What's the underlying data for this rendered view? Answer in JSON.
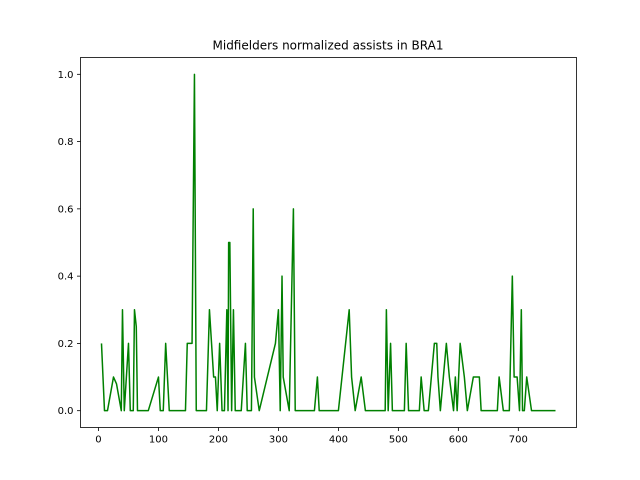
{
  "chart_data": {
    "type": "line",
    "title": "Midfielders normalized assists in BRA1",
    "xlabel": "",
    "ylabel": "",
    "xlim": [
      -30,
      797
    ],
    "ylim": [
      -0.05,
      1.05
    ],
    "x_ticks": [
      0,
      100,
      200,
      300,
      400,
      500,
      600,
      700
    ],
    "x_tick_labels": [
      "0",
      "100",
      "200",
      "300",
      "400",
      "500",
      "600",
      "700"
    ],
    "y_ticks": [
      0.0,
      0.2,
      0.4,
      0.6,
      0.8,
      1.0
    ],
    "y_tick_labels": [
      "0.0",
      "0.2",
      "0.4",
      "0.6",
      "0.8",
      "1.0"
    ],
    "grid": false,
    "legend": "none",
    "series": [
      {
        "color": "#008000",
        "points": [
          [
            5,
            0.2
          ],
          [
            10,
            0.0
          ],
          [
            15,
            0.0
          ],
          [
            25,
            0.1
          ],
          [
            30,
            0.08
          ],
          [
            38,
            0.0
          ],
          [
            40,
            0.3
          ],
          [
            43,
            0.0
          ],
          [
            50,
            0.2
          ],
          [
            53,
            0.0
          ],
          [
            58,
            0.0
          ],
          [
            60,
            0.3
          ],
          [
            63,
            0.25
          ],
          [
            65,
            0.0
          ],
          [
            83,
            0.0
          ],
          [
            100,
            0.1
          ],
          [
            103,
            0.0
          ],
          [
            108,
            0.0
          ],
          [
            112,
            0.2
          ],
          [
            118,
            0.0
          ],
          [
            145,
            0.0
          ],
          [
            148,
            0.2
          ],
          [
            156,
            0.2
          ],
          [
            160,
            1.0
          ],
          [
            163,
            0.0
          ],
          [
            180,
            0.0
          ],
          [
            185,
            0.3
          ],
          [
            192,
            0.1
          ],
          [
            195,
            0.1
          ],
          [
            198,
            0.0
          ],
          [
            202,
            0.2
          ],
          [
            206,
            0.0
          ],
          [
            210,
            0.0
          ],
          [
            214,
            0.3
          ],
          [
            216,
            0.0
          ],
          [
            217,
            0.5
          ],
          [
            219,
            0.5
          ],
          [
            222,
            0.0
          ],
          [
            225,
            0.3
          ],
          [
            228,
            0.0
          ],
          [
            232,
            0.0
          ],
          [
            238,
            0.0
          ],
          [
            245,
            0.2
          ],
          [
            248,
            0.0
          ],
          [
            255,
            0.0
          ],
          [
            258,
            0.6
          ],
          [
            260,
            0.1
          ],
          [
            268,
            0.0
          ],
          [
            295,
            0.2
          ],
          [
            300,
            0.3
          ],
          [
            303,
            0.0
          ],
          [
            306,
            0.4
          ],
          [
            308,
            0.1
          ],
          [
            318,
            0.0
          ],
          [
            325,
            0.6
          ],
          [
            328,
            0.0
          ],
          [
            345,
            0.0
          ],
          [
            360,
            0.0
          ],
          [
            365,
            0.1
          ],
          [
            368,
            0.0
          ],
          [
            400,
            0.0
          ],
          [
            418,
            0.3
          ],
          [
            422,
            0.1
          ],
          [
            428,
            0.0
          ],
          [
            438,
            0.1
          ],
          [
            445,
            0.0
          ],
          [
            455,
            0.0
          ],
          [
            465,
            0.0
          ],
          [
            478,
            0.0
          ],
          [
            480,
            0.3
          ],
          [
            483,
            0.0
          ],
          [
            487,
            0.2
          ],
          [
            490,
            0.0
          ],
          [
            500,
            0.0
          ],
          [
            510,
            0.0
          ],
          [
            513,
            0.2
          ],
          [
            517,
            0.0
          ],
          [
            535,
            0.0
          ],
          [
            538,
            0.1
          ],
          [
            543,
            0.0
          ],
          [
            550,
            0.0
          ],
          [
            560,
            0.2
          ],
          [
            564,
            0.2
          ],
          [
            566,
            0.1
          ],
          [
            570,
            0.0
          ],
          [
            580,
            0.2
          ],
          [
            585,
            0.1
          ],
          [
            592,
            0.0
          ],
          [
            595,
            0.1
          ],
          [
            598,
            0.0
          ],
          [
            603,
            0.2
          ],
          [
            610,
            0.1
          ],
          [
            615,
            0.0
          ],
          [
            625,
            0.1
          ],
          [
            635,
            0.1
          ],
          [
            638,
            0.0
          ],
          [
            665,
            0.0
          ],
          [
            668,
            0.1
          ],
          [
            675,
            0.0
          ],
          [
            685,
            0.0
          ],
          [
            690,
            0.4
          ],
          [
            693,
            0.1
          ],
          [
            698,
            0.1
          ],
          [
            702,
            0.0
          ],
          [
            705,
            0.3
          ],
          [
            707,
            0.0
          ],
          [
            710,
            0.0
          ],
          [
            714,
            0.1
          ],
          [
            722,
            0.0
          ],
          [
            740,
            0.0
          ],
          [
            762,
            0.0
          ]
        ]
      }
    ]
  }
}
